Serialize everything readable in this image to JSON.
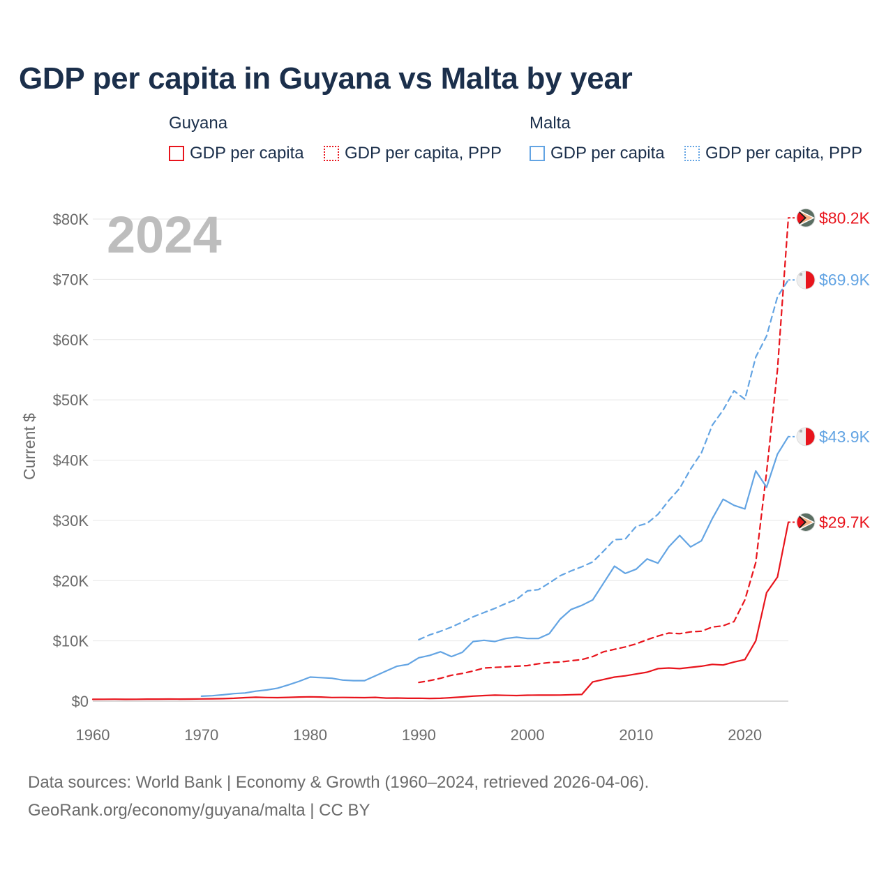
{
  "title": "GDP per capita in Guyana vs Malta by year",
  "legend": {
    "groups": [
      {
        "name": "Guyana",
        "items": [
          {
            "label": "GDP per capita",
            "style": "solid",
            "color": "#e8141c"
          },
          {
            "label": "GDP per capita, PPP",
            "style": "dotted",
            "color": "#e8141c"
          }
        ]
      },
      {
        "name": "Malta",
        "items": [
          {
            "label": "GDP per capita",
            "style": "solid",
            "color": "#63a4e3"
          },
          {
            "label": "GDP per capita, PPP",
            "style": "dotted",
            "color": "#63a4e3"
          }
        ]
      }
    ]
  },
  "chart_data": {
    "type": "line",
    "year_label": "2024",
    "ylabel": "Current $",
    "xlim": [
      1960,
      2024
    ],
    "ylim": [
      0,
      80000
    ],
    "x_ticks": [
      1960,
      1970,
      1980,
      1990,
      2000,
      2010,
      2020
    ],
    "y_ticks": [
      {
        "value": 0,
        "label": "$0"
      },
      {
        "value": 10000,
        "label": "$10K"
      },
      {
        "value": 20000,
        "label": "$20K"
      },
      {
        "value": 30000,
        "label": "$30K"
      },
      {
        "value": 40000,
        "label": "$40K"
      },
      {
        "value": 50000,
        "label": "$50K"
      },
      {
        "value": 60000,
        "label": "$60K"
      },
      {
        "value": 70000,
        "label": "$70K"
      },
      {
        "value": 80000,
        "label": "$80K"
      }
    ],
    "series": [
      {
        "name": "Guyana GDP per capita",
        "color": "#e8141c",
        "dash": "solid",
        "end_label": "$29.7K",
        "flag": "guyana",
        "start_year": 1960,
        "values": [
          300,
          310,
          320,
          300,
          310,
          330,
          340,
          350,
          340,
          350,
          370,
          390,
          420,
          480,
          580,
          650,
          600,
          580,
          620,
          680,
          720,
          680,
          600,
          610,
          590,
          580,
          620,
          510,
          520,
          480,
          490,
          450,
          480,
          580,
          700,
          830,
          930,
          1000,
          960,
          930,
          980,
          990,
          1000,
          1010,
          1070,
          1110,
          3200,
          3600,
          4000,
          4200,
          4500,
          4800,
          5400,
          5500,
          5400,
          5600,
          5800,
          6100,
          6000,
          6500,
          6900,
          10000,
          18000,
          20600,
          29700
        ]
      },
      {
        "name": "Guyana GDP per capita, PPP",
        "color": "#e8141c",
        "dash": "dashed",
        "end_label": "$80.2K",
        "flag": "guyana",
        "start_year": 1990,
        "values": [
          3100,
          3400,
          3800,
          4300,
          4600,
          5000,
          5500,
          5600,
          5700,
          5800,
          5900,
          6200,
          6400,
          6500,
          6700,
          6900,
          7400,
          8200,
          8600,
          9000,
          9500,
          10200,
          10800,
          11300,
          11200,
          11500,
          11600,
          12300,
          12500,
          13200,
          16800,
          23000,
          38000,
          55000,
          80200
        ]
      },
      {
        "name": "Malta GDP per capita",
        "color": "#63a4e3",
        "dash": "solid",
        "end_label": "$43.9K",
        "flag": "malta",
        "start_year": 1970,
        "values": [
          820,
          900,
          1050,
          1250,
          1350,
          1650,
          1850,
          2150,
          2700,
          3300,
          4000,
          3900,
          3800,
          3500,
          3400,
          3400,
          4200,
          5000,
          5800,
          6100,
          7200,
          7600,
          8200,
          7400,
          8100,
          9900,
          10100,
          9900,
          10400,
          10600,
          10400,
          10400,
          11200,
          13600,
          15200,
          15900,
          16800,
          19600,
          22400,
          21200,
          21900,
          23600,
          22900,
          25600,
          27500,
          25600,
          26600,
          30300,
          33500,
          32500,
          31900,
          38200,
          35500,
          41000,
          43900
        ]
      },
      {
        "name": "Malta GDP per capita, PPP",
        "color": "#63a4e3",
        "dash": "dashed",
        "end_label": "$69.9K",
        "flag": "malta",
        "start_year": 1990,
        "values": [
          10200,
          11000,
          11600,
          12300,
          13100,
          14000,
          14700,
          15400,
          16200,
          16900,
          18300,
          18500,
          19600,
          20800,
          21600,
          22300,
          23100,
          24900,
          26800,
          26900,
          29000,
          29500,
          31000,
          33300,
          35300,
          38500,
          41200,
          45800,
          48300,
          51500,
          50100,
          57100,
          60600,
          67100,
          69900
        ]
      }
    ]
  },
  "footer": {
    "line1": "Data sources: World Bank | Economy & Growth (1960–2024, retrieved 2026-04-06).",
    "line2": "GeoRank.org/economy/guyana/malta | CC BY"
  }
}
